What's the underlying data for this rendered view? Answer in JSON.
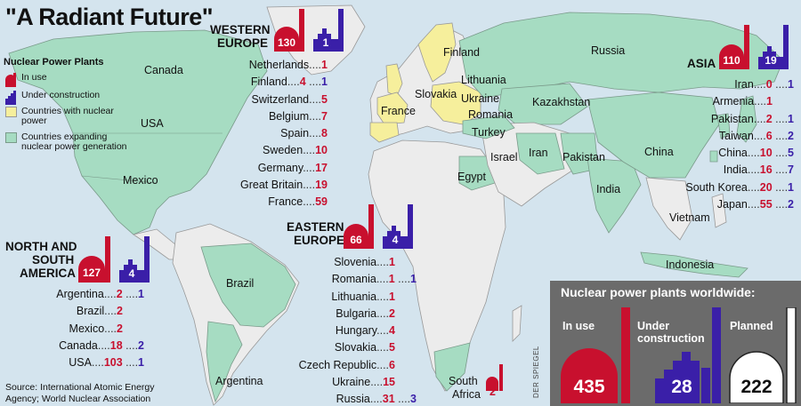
{
  "title": "\"A Radiant Future\"",
  "legend": {
    "heading": "Nuclear Power Plants",
    "in_use": "In use",
    "under_construction": "Under construction",
    "countries_with_nuclear": "Countries with nuclear power",
    "countries_expanding": "Countries expanding nuclear power generation"
  },
  "colors": {
    "ocean": "#d4e4ee",
    "land": "#ececec",
    "expanding": "#a6dcc2",
    "with_nuclear": "#f6ef9c",
    "in_use": "#c8102e",
    "under_construction": "#3a1fa8",
    "planned": "#ffffff",
    "panel": "#6b6b6b"
  },
  "map_labels": {
    "canada": "Canada",
    "usa": "USA",
    "mexico": "Mexico",
    "brazil": "Brazil",
    "argentina": "Argentina",
    "russia": "Russia",
    "finland": "Finland",
    "lithuania": "Lithuania",
    "slovakia": "Slovakia",
    "ukraine": "Ukraine",
    "romania": "Romania",
    "france": "France",
    "turkey": "Turkey",
    "kazakhstan": "Kazakhstan",
    "israel": "Israel",
    "iran": "Iran",
    "pakistan": "Pakistan",
    "china": "China",
    "india": "India",
    "egypt": "Egypt",
    "vietnam": "Vietnam",
    "indonesia": "Indonesia",
    "south_africa_1": "South",
    "south_africa_2": "Africa"
  },
  "regions": {
    "western_europe": {
      "title_1": "WESTERN",
      "title_2": "EUROPE",
      "in_use": "130",
      "under_construction": "1",
      "rows": [
        {
          "country": "Netherlands",
          "in_use": "1",
          "construction": ""
        },
        {
          "country": "Finland",
          "in_use": "4",
          "construction": "1"
        },
        {
          "country": "Switzerland",
          "in_use": "5",
          "construction": ""
        },
        {
          "country": "Belgium",
          "in_use": "7",
          "construction": ""
        },
        {
          "country": "Spain",
          "in_use": "8",
          "construction": ""
        },
        {
          "country": "Sweden",
          "in_use": "10",
          "construction": ""
        },
        {
          "country": "Germany",
          "in_use": "17",
          "construction": ""
        },
        {
          "country": "Great Britain",
          "in_use": "19",
          "construction": ""
        },
        {
          "country": "France",
          "in_use": "59",
          "construction": ""
        }
      ]
    },
    "eastern_europe": {
      "title_1": "EASTERN",
      "title_2": "EUROPE",
      "in_use": "66",
      "under_construction": "4",
      "rows": [
        {
          "country": "Slovenia",
          "in_use": "1",
          "construction": ""
        },
        {
          "country": "Romania",
          "in_use": "1",
          "construction": "1"
        },
        {
          "country": "Lithuania",
          "in_use": "1",
          "construction": ""
        },
        {
          "country": "Bulgaria",
          "in_use": "2",
          "construction": ""
        },
        {
          "country": "Hungary",
          "in_use": "4",
          "construction": ""
        },
        {
          "country": "Slovakia",
          "in_use": "5",
          "construction": ""
        },
        {
          "country": "Czech Republic",
          "in_use": "6",
          "construction": ""
        },
        {
          "country": "Ukraine",
          "in_use": "15",
          "construction": ""
        },
        {
          "country": "Russia",
          "in_use": "31",
          "construction": "3"
        }
      ]
    },
    "asia": {
      "title_1": "ASIA",
      "in_use": "110",
      "under_construction": "19",
      "rows": [
        {
          "country": "Iran",
          "in_use": "0",
          "construction": "1"
        },
        {
          "country": "Armenia",
          "in_use": "1",
          "construction": ""
        },
        {
          "country": "Pakistan",
          "in_use": "2",
          "construction": "1"
        },
        {
          "country": "Taiwan",
          "in_use": "6",
          "construction": "2"
        },
        {
          "country": "China",
          "in_use": "10",
          "construction": "5"
        },
        {
          "country": "India",
          "in_use": "16",
          "construction": "7"
        },
        {
          "country": "South Korea",
          "in_use": "20",
          "construction": "1"
        },
        {
          "country": "Japan",
          "in_use": "55",
          "construction": "2"
        }
      ]
    },
    "americas": {
      "title_1": "NORTH AND",
      "title_2": "SOUTH",
      "title_3": "AMERICA",
      "in_use": "127",
      "under_construction": "4",
      "rows": [
        {
          "country": "Argentina",
          "in_use": "2",
          "construction": "1"
        },
        {
          "country": "Brazil",
          "in_use": "2",
          "construction": ""
        },
        {
          "country": "Mexico",
          "in_use": "2",
          "construction": ""
        },
        {
          "country": "Canada",
          "in_use": "18",
          "construction": "2"
        },
        {
          "country": "USA",
          "in_use": "103",
          "construction": "1"
        }
      ]
    },
    "south_africa": {
      "in_use": "2"
    }
  },
  "worldwide": {
    "title": "Nuclear power plants worldwide:",
    "in_use_label": "In use",
    "in_use": "435",
    "construction_label_1": "Under",
    "construction_label_2": "construction",
    "under_construction": "28",
    "planned_label": "Planned",
    "planned": "222"
  },
  "source_line_1": "Source: International Atomic Energy",
  "source_line_2": "Agency; World Nuclear Association",
  "credit": "DER SPIEGEL"
}
